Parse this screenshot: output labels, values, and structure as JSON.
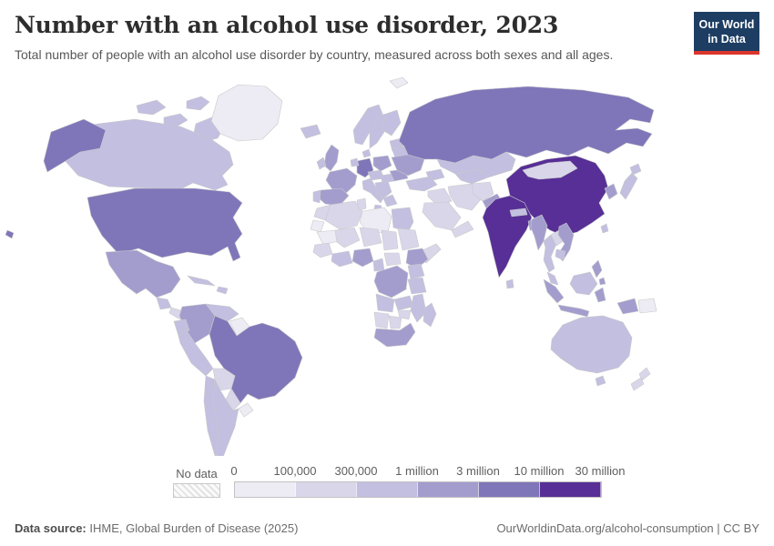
{
  "header": {
    "title": "Number with an alcohol use disorder, 2023",
    "subtitle": "Total number of people with an alcohol use disorder by country, measured across both sexes and all ages.",
    "logo": {
      "line1": "Our World",
      "line2": "in Data"
    }
  },
  "legend": {
    "no_data_label": "No data",
    "ticks": [
      "0",
      "100,000",
      "300,000",
      "1 million",
      "3 million",
      "10 million",
      "30 million"
    ],
    "bin_colors": [
      "#edebf4",
      "#d9d6ea",
      "#c2bfe0",
      "#a39dce",
      "#7f76b9",
      "#572f96"
    ]
  },
  "footer": {
    "source_label": "Data source:",
    "source_text": " IHME, Global Burden of Disease (2025)",
    "link_text": "OurWorldinData.org/alcohol-consumption",
    "divider": " | ",
    "license_text": "CC BY"
  },
  "colors": {
    "logo_bg": "#1d3d63",
    "logo_accent": "#dc352c",
    "map_border": "#c9c9c9",
    "sea": "#ffffff"
  },
  "chart_data": {
    "type": "heatmap",
    "subtype": "choropleth-world-map",
    "title": "Number with an alcohol use disorder, 2023",
    "subtitle": "Total number of people with an alcohol use disorder by country, measured across both sexes and all ages.",
    "year": 2023,
    "unit": "people with an alcohol use disorder",
    "legend_position": "bottom",
    "bins": [
      {
        "bin": 1,
        "range": "0 – 100,000",
        "color": "#edebf4"
      },
      {
        "bin": 2,
        "range": "100,000 – 300,000",
        "color": "#d9d6ea"
      },
      {
        "bin": 3,
        "range": "300,000 – 1 million",
        "color": "#c2bfe0"
      },
      {
        "bin": 4,
        "range": "1 million – 3 million",
        "color": "#a39dce"
      },
      {
        "bin": 5,
        "range": "3 million – 10 million",
        "color": "#7f76b9"
      },
      {
        "bin": 6,
        "range": "10 million – 30 million+",
        "color": "#572f96"
      }
    ],
    "countries": {
      "greenland": 1,
      "canada": 3,
      "usa": 5,
      "mexico": 4,
      "guatemala": 3,
      "central-america": 2,
      "cuba": 3,
      "hispaniola": 3,
      "colombia": 4,
      "venezuela": 3,
      "guyanas": 1,
      "ecuador": 3,
      "peru": 3,
      "brazil": 5,
      "bolivia": 2,
      "paraguay": 2,
      "uruguay": 1,
      "chile": 3,
      "argentina": 3,
      "iceland": 3,
      "svalbard": 1,
      "norway": 3,
      "sweden": 3,
      "finland": 3,
      "denmark": 3,
      "baltics": 3,
      "uk": 4,
      "ireland": 3,
      "germany": 5,
      "benelux": 3,
      "france": 4,
      "spain": 4,
      "portugal": 3,
      "italy": 3,
      "czechia-austria": 3,
      "poland": 4,
      "hungary": 3,
      "balkans": 3,
      "greece": 3,
      "romania": 4,
      "belarus": 3,
      "ukraine": 4,
      "russia": 5,
      "caucasus": 3,
      "turkey": 3,
      "syria-iraq": 2,
      "saudi-arabia": 2,
      "yemen-oman": 2,
      "iran": 2,
      "afghanistan": 2,
      "pakistan": 4,
      "central-asia": 3,
      "kazakhstan": 3,
      "india": 6,
      "sri-lanka": 3,
      "nepal": 3,
      "bangladesh": 4,
      "china": 6,
      "mongolia": 2,
      "korea": 4,
      "japan": 3,
      "taiwan": 3,
      "myanmar": 4,
      "thailand": 3,
      "laos": 2,
      "vietnam": 4,
      "cambodia": 3,
      "malaysia": 3,
      "borneo": 3,
      "sumatra": 4,
      "java": 4,
      "sulawesi": 4,
      "west-papua": 4,
      "papua-new-guinea": 1,
      "philippines": 4,
      "morocco": 2,
      "algeria": 2,
      "tunisia": 2,
      "libya": 1,
      "egypt": 3,
      "western-sahara": 1,
      "mauritania": 1,
      "mali": 2,
      "niger": 2,
      "chad": 2,
      "sudan": 2,
      "somalia": 2,
      "ethiopia": 4,
      "west-africa": 2,
      "ghana-ivory": 3,
      "nigeria": 4,
      "cameroon": 3,
      "car": 2,
      "drc": 4,
      "uganda-kenya": 3,
      "tanzania": 3,
      "angola": 3,
      "zambia": 3,
      "mozambique": 3,
      "zimbabwe": 2,
      "namibia": 2,
      "botswana": 2,
      "south-africa": 4,
      "madagascar": 3,
      "australia": 3,
      "tasmania": 3,
      "new-zealand": 2
    }
  }
}
